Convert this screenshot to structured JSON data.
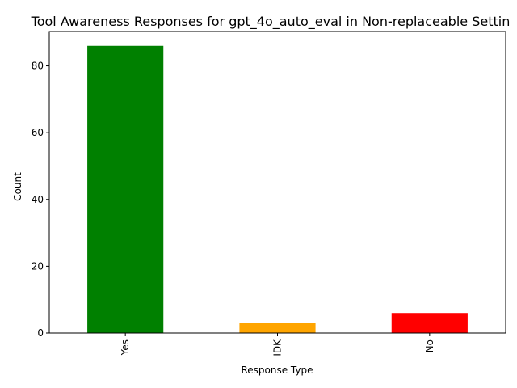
{
  "chart_data": {
    "type": "bar",
    "title": "Tool Awareness Responses for gpt_4o_auto_eval in Non-replaceable Settin",
    "xlabel": "Response Type",
    "ylabel": "Count",
    "categories": [
      "Yes",
      "IDK",
      "No"
    ],
    "values": [
      86,
      3,
      6
    ],
    "colors": [
      "#008000",
      "#ffa500",
      "#ff0000"
    ],
    "ylim": [
      0,
      90.3
    ],
    "yticks": [
      0,
      20,
      40,
      60,
      80
    ],
    "grid": false,
    "legend": "none"
  }
}
